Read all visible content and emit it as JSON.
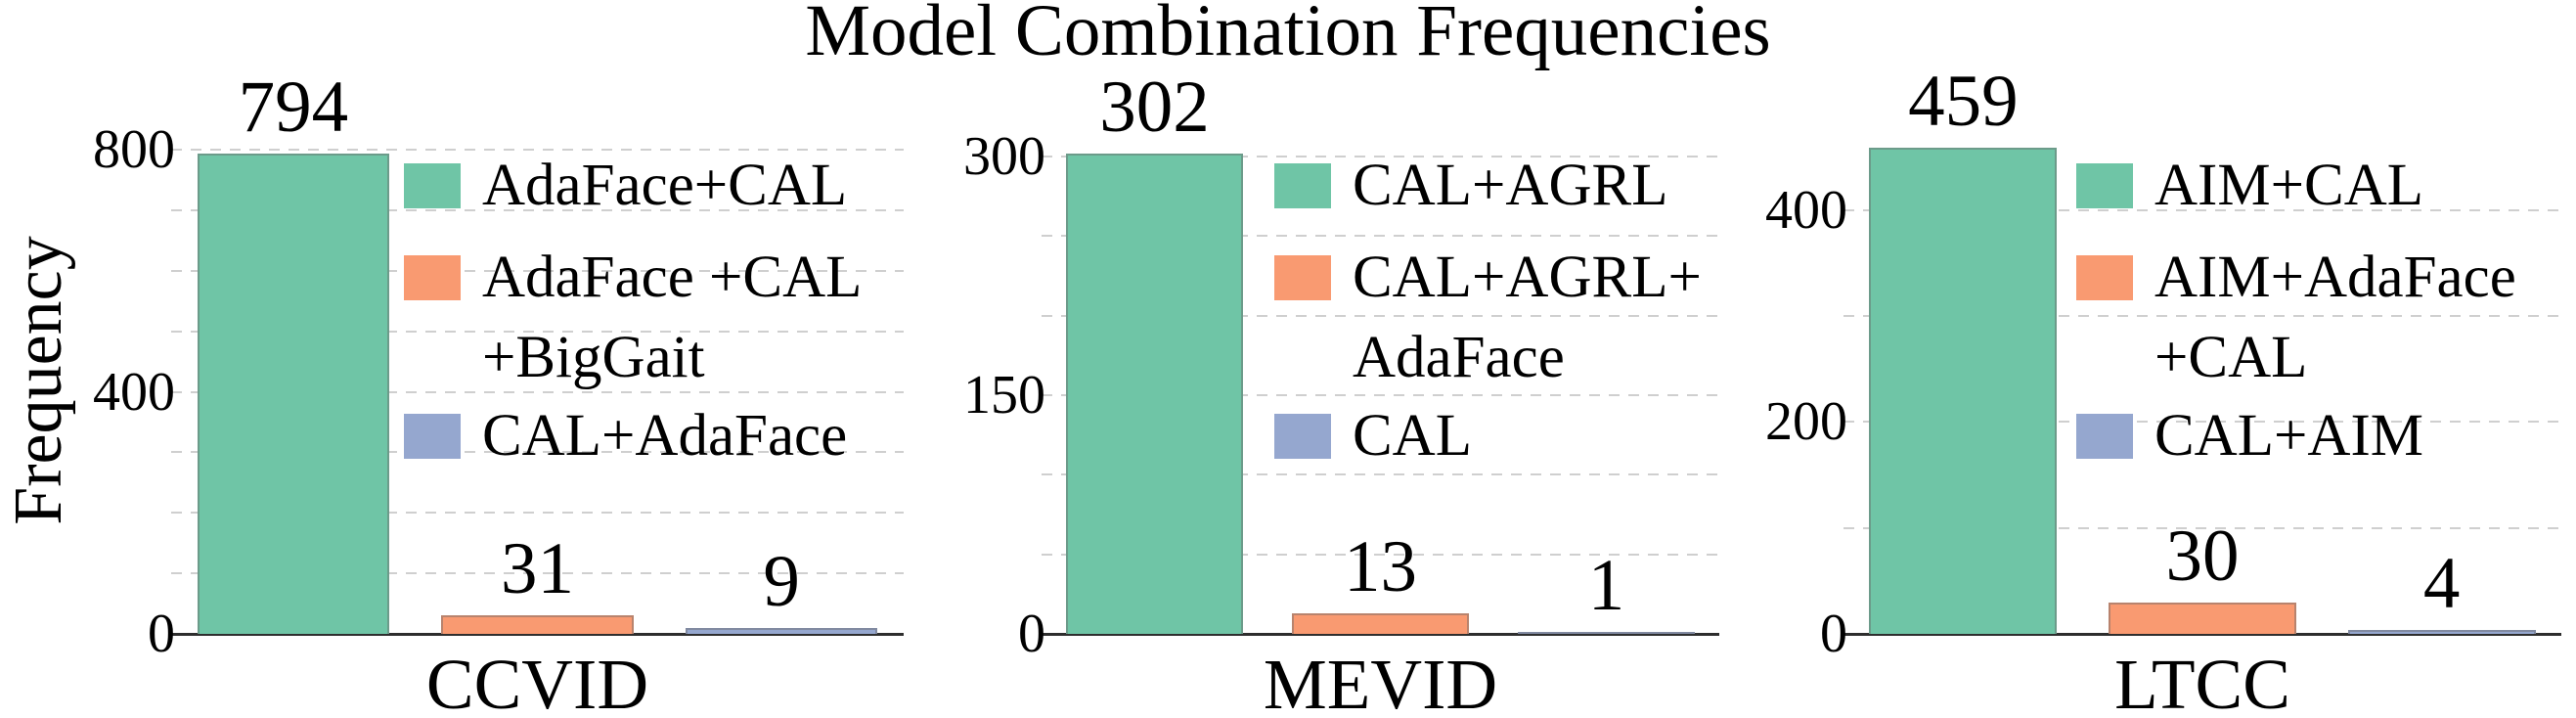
{
  "title": "Model Combination Frequencies",
  "ylabel": "Frequency",
  "colors": {
    "green": "#6fc5a6",
    "orange": "#f99a71",
    "blue": "#95a7cf",
    "grid": "#cfcfcf",
    "axis": "#2e2e2e"
  },
  "chart_data": [
    {
      "type": "bar",
      "dataset_label": "CCVID",
      "xlabel": "CCVID",
      "ylabel": "Frequency",
      "ylim": [
        0,
        910
      ],
      "yticks": [
        0,
        400,
        800
      ],
      "grid_interval": 100,
      "grid_max": 800,
      "grid_on": true,
      "legend_position": "upper right inside",
      "categories": [
        "AdaFace+CAL",
        "AdaFace +CAL +BigGait",
        "CAL+AdaFace"
      ],
      "values": [
        794,
        31,
        9
      ],
      "bars": [
        {
          "name": "AdaFace+CAL",
          "value": 794,
          "value_label": "794",
          "color_key": "green"
        },
        {
          "name": "AdaFace +CAL +BigGait",
          "value": 31,
          "value_label": "31",
          "color_key": "orange"
        },
        {
          "name": "CAL+AdaFace",
          "value": 9,
          "value_label": "9",
          "color_key": "blue"
        }
      ],
      "legend": [
        {
          "lines": [
            "AdaFace+CAL"
          ],
          "color_key": "green"
        },
        {
          "lines": [
            "AdaFace +CAL",
            "+BigGait"
          ],
          "color_key": "orange"
        },
        {
          "lines": [
            "CAL+AdaFace"
          ],
          "color_key": "blue"
        }
      ]
    },
    {
      "type": "bar",
      "dataset_label": "MEVID",
      "xlabel": "MEVID",
      "ylabel": "Frequency",
      "ylim": [
        0,
        346
      ],
      "yticks": [
        0,
        150,
        300
      ],
      "grid_interval": 50,
      "grid_max": 300,
      "grid_on": true,
      "legend_position": "upper right inside",
      "categories": [
        "CAL+AGRL",
        "CAL+AGRL+ AdaFace",
        "CAL"
      ],
      "values": [
        302,
        13,
        1
      ],
      "bars": [
        {
          "name": "CAL+AGRL",
          "value": 302,
          "value_label": "302",
          "color_key": "green"
        },
        {
          "name": "CAL+AGRL+ AdaFace",
          "value": 13,
          "value_label": "13",
          "color_key": "orange"
        },
        {
          "name": "CAL",
          "value": 1,
          "value_label": "1",
          "color_key": "blue"
        }
      ],
      "legend": [
        {
          "lines": [
            "CAL+AGRL"
          ],
          "color_key": "green"
        },
        {
          "lines": [
            "CAL+AGRL+",
            "AdaFace"
          ],
          "color_key": "orange"
        },
        {
          "lines": [
            "CAL"
          ],
          "color_key": "blue"
        }
      ]
    },
    {
      "type": "bar",
      "dataset_label": "LTCC",
      "xlabel": "LTCC",
      "ylabel": "Frequency",
      "ylim": [
        0,
        520
      ],
      "yticks": [
        0,
        200,
        400
      ],
      "grid_interval": 100,
      "grid_max": 400,
      "grid_on": true,
      "legend_position": "upper right inside",
      "categories": [
        "AIM+CAL",
        "AIM+AdaFace +CAL",
        "CAL+AIM"
      ],
      "values": [
        459,
        30,
        4
      ],
      "bars": [
        {
          "name": "AIM+CAL",
          "value": 459,
          "value_label": "459",
          "color_key": "green"
        },
        {
          "name": "AIM+AdaFace +CAL",
          "value": 30,
          "value_label": "30",
          "color_key": "orange"
        },
        {
          "name": "CAL+AIM",
          "value": 4,
          "value_label": "4",
          "color_key": "blue"
        }
      ],
      "legend": [
        {
          "lines": [
            "AIM+CAL"
          ],
          "color_key": "green"
        },
        {
          "lines": [
            "AIM+AdaFace",
            "+CAL"
          ],
          "color_key": "orange"
        },
        {
          "lines": [
            "CAL+AIM"
          ],
          "color_key": "blue"
        }
      ]
    }
  ]
}
